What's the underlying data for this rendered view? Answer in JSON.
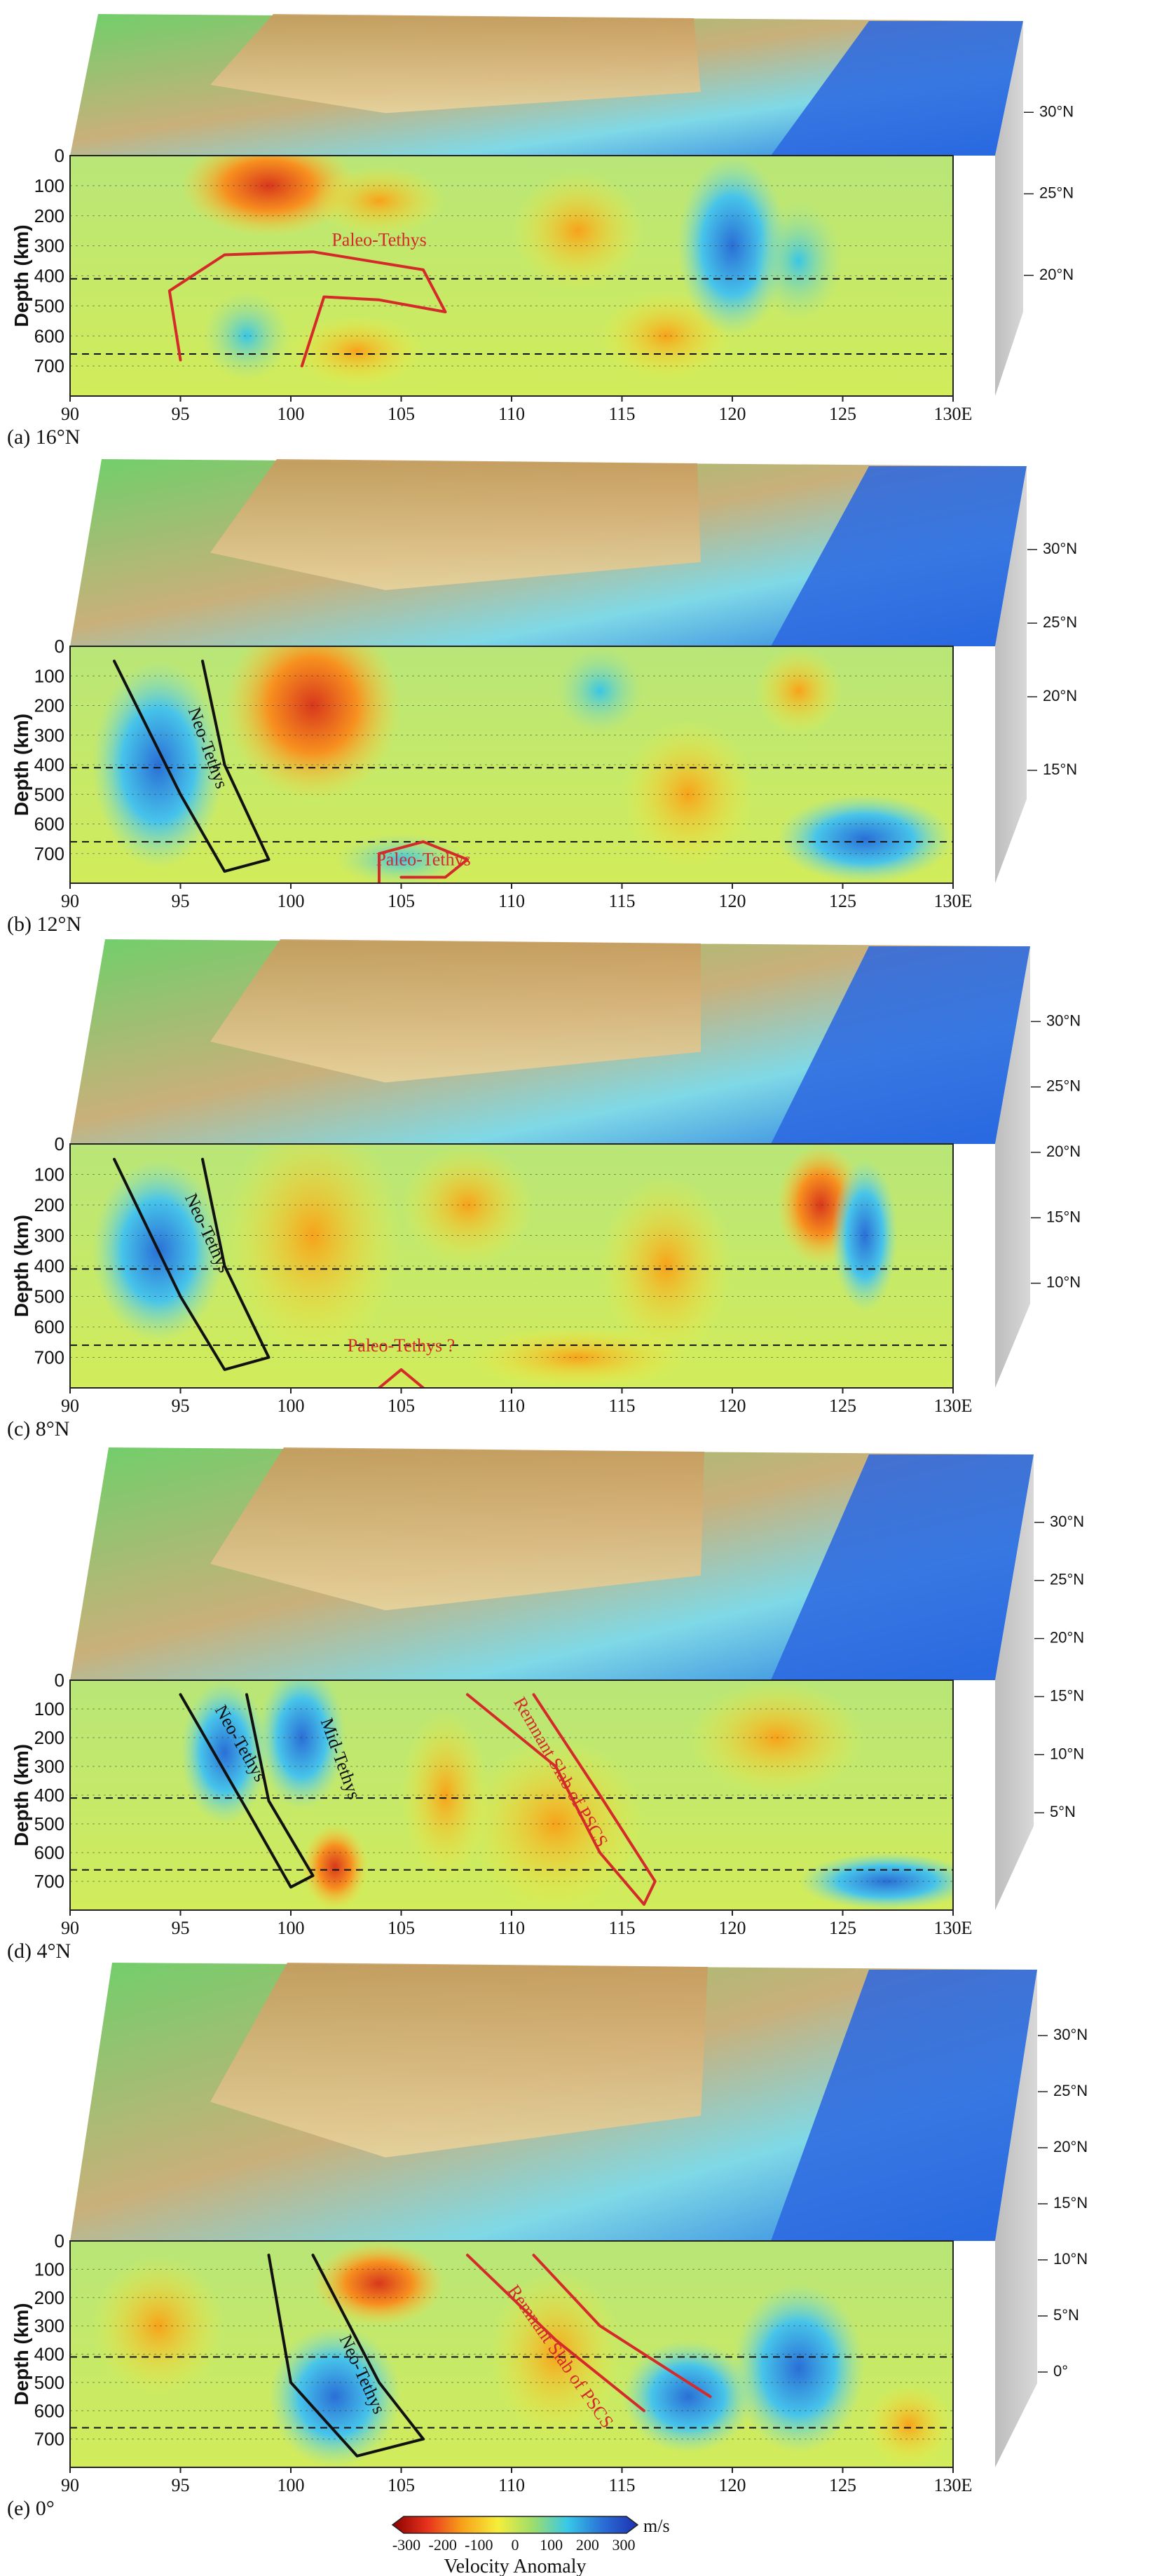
{
  "figure": {
    "depth_axis_label": "Depth (km)",
    "depth_ticks": [
      "0",
      "100",
      "200",
      "300",
      "400",
      "500",
      "600",
      "700"
    ],
    "longitude_ticks": [
      "90",
      "95",
      "100",
      "105",
      "110",
      "115",
      "120",
      "125",
      "130"
    ],
    "longitude_end_suffix": "E",
    "colorbar": {
      "ticks": [
        "-300",
        "-200",
        "-100",
        "0",
        "100",
        "200",
        "300"
      ],
      "unit": "m/s",
      "label": "Velocity  Anomaly",
      "colors": [
        "#8b0000",
        "#e8321d",
        "#f7a21a",
        "#f6ee3a",
        "#9ede6a",
        "#37c8e8",
        "#2a6fd6",
        "#1f2fb0"
      ]
    },
    "panels": [
      {
        "label": "(a) 16°N",
        "lat_ticks": [
          "30°N",
          "25°N",
          "20°N"
        ],
        "annotations": [
          {
            "text": "Paleo-Tethys",
            "color": "#d42a2a"
          }
        ]
      },
      {
        "label": "(b) 12°N",
        "lat_ticks": [
          "30°N",
          "25°N",
          "20°N",
          "15°N"
        ],
        "annotations": [
          {
            "text": "Neo-Tethys",
            "color": "#111111"
          },
          {
            "text": "Paleo-Tethys",
            "color": "#d42a2a"
          }
        ]
      },
      {
        "label": "(c) 8°N",
        "lat_ticks": [
          "30°N",
          "25°N",
          "20°N",
          "15°N",
          "10°N"
        ],
        "annotations": [
          {
            "text": "Neo-Tethys",
            "color": "#111111"
          },
          {
            "text": "Paleo-Tethys ?",
            "color": "#d42a2a"
          }
        ]
      },
      {
        "label": "(d) 4°N",
        "lat_ticks": [
          "30°N",
          "25°N",
          "20°N",
          "15°N",
          "10°N",
          "5°N"
        ],
        "annotations": [
          {
            "text": "Neo-Tethys",
            "color": "#111111"
          },
          {
            "text": "Mid-Tethys",
            "color": "#111111"
          },
          {
            "text": "Remnant Slab of PSCS",
            "color": "#d42a2a"
          }
        ]
      },
      {
        "label": "(e) 0°",
        "lat_ticks": [
          "30°N",
          "25°N",
          "20°N",
          "15°N",
          "10°N",
          "5°N",
          "0°"
        ],
        "annotations": [
          {
            "text": "Neo-Tethys",
            "color": "#111111"
          },
          {
            "text": "Remnant Slab of PSCS",
            "color": "#d42a2a"
          }
        ]
      }
    ]
  }
}
